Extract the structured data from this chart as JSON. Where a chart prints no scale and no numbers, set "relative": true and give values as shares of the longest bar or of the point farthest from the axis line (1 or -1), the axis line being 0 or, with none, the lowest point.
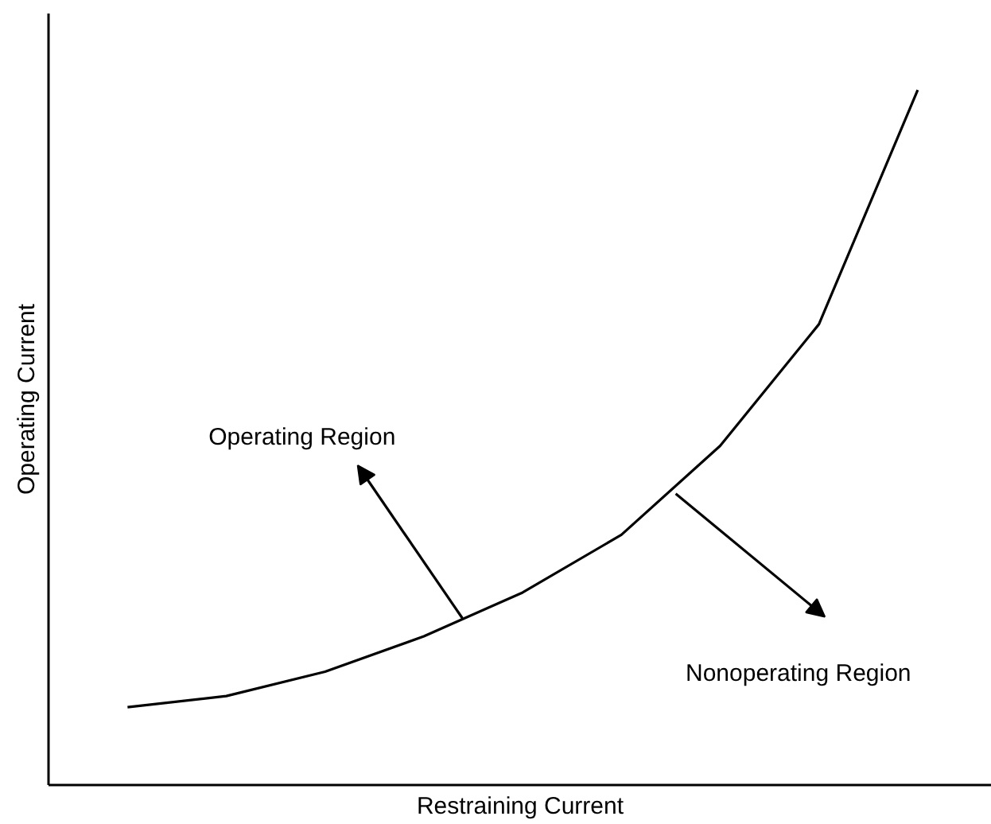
{
  "chart_data": {
    "type": "line",
    "relative": true,
    "xlabel": "Restraining Current",
    "ylabel": "Operating Current",
    "categories": [
      null,
      null,
      null,
      null,
      null,
      null,
      null,
      null,
      null
    ],
    "series": [
      {
        "color": "#000000",
        "values": [
          0.112,
          0.128,
          0.163,
          0.214,
          0.277,
          0.36,
          0.488,
          0.663,
          1.0
        ]
      }
    ],
    "annotations": [
      "Operating Region",
      "Nonoperating Region"
    ],
    "marker": "none",
    "line_style": "solid"
  }
}
